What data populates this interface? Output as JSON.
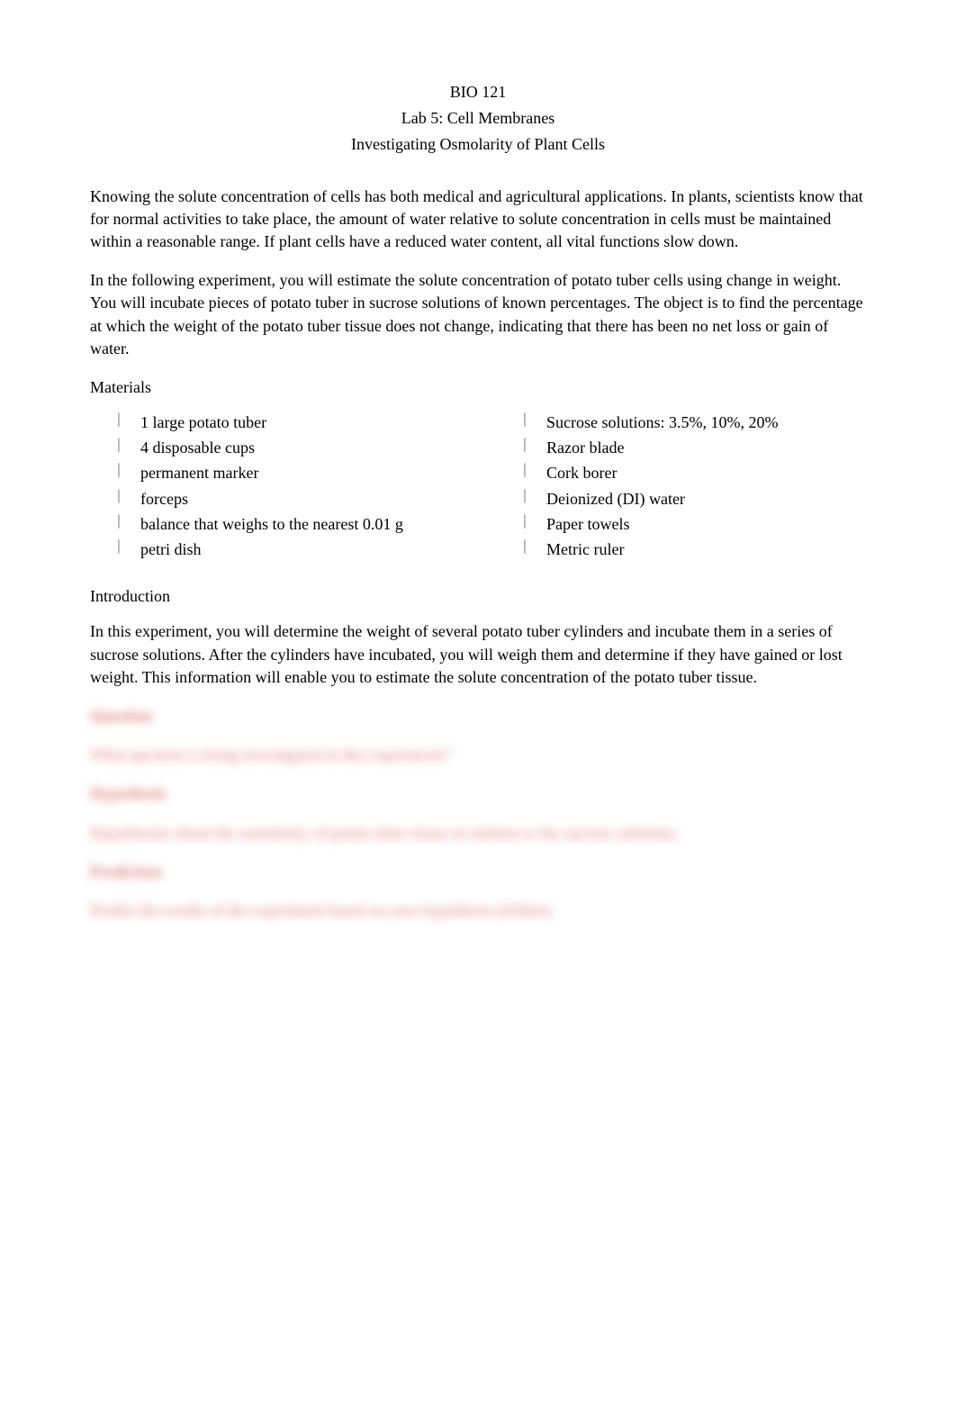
{
  "header": {
    "course": "BIO 121",
    "lab_title": "Lab 5: Cell Membranes",
    "subtitle": "Investigating Osmolarity of Plant Cells"
  },
  "paragraphs": {
    "p1": "Knowing the solute concentration of cells has both medical and agricultural applications. In plants, scientists know that for normal activities to take place, the amount of water relative to solute concentration in cells must be maintained within a reasonable range. If plant cells have a reduced water content, all vital functions slow down.",
    "p2": "In the following experiment, you will estimate the solute concentration of potato tuber cells using change in weight. You will incubate pieces of potato tuber in sucrose solutions of known percentages. The object is to find the percentage at which the weight of the potato tuber tissue does not change, indicating that there has been no net loss or gain of water."
  },
  "materials": {
    "label": "Materials",
    "left": [
      "1 large potato tuber",
      "4 disposable cups",
      "permanent marker",
      "forceps",
      "balance that weighs to the nearest 0.01 g",
      "petri dish"
    ],
    "right": [
      "Sucrose solutions: 3.5%, 10%, 20%",
      "Razor blade",
      "Cork borer",
      "Deionized (DI) water",
      "Paper towels",
      "Metric ruler"
    ],
    "bullet": "⏐"
  },
  "introduction": {
    "label": "Introduction",
    "text": "In this experiment, you will determine the weight of several potato tuber cylinders and incubate them in a series of sucrose solutions. After the cylinders have incubated, you will weigh them and determine if they have gained or lost weight. This information will enable you to estimate the solute concentration of the potato tuber tissue."
  },
  "blurred": {
    "h1": "Question",
    "b1": "What question is being investigated in this experiment?",
    "h2": "Hypothesis",
    "b2": "Hypothesize about the osmolarity of potato tuber tissue in relation to the sucrose solutions.",
    "h3": "Prediction",
    "b3": "Predict the results of the experiment based on your hypothesis (if/then)."
  },
  "colors": {
    "text": "#000000",
    "background": "#ffffff",
    "blur_tint": "rgba(200,60,40,0.65)"
  },
  "fonts": {
    "body_family": "Times New Roman",
    "body_size_pt": 13
  }
}
